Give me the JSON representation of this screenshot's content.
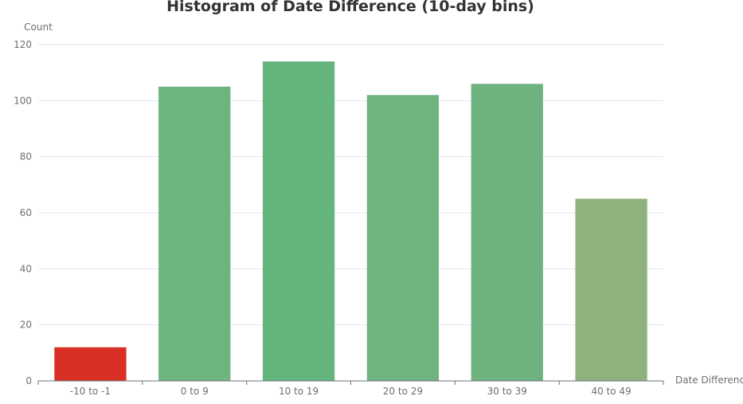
{
  "chart_data": {
    "type": "bar",
    "title": "Histogram of Date Difference (10-day bins)",
    "xlabel": "Date Differenc",
    "ylabel": "Count",
    "categories": [
      "-10 to -1",
      "0 to 9",
      "10 to 19",
      "20 to 29",
      "30 to 39",
      "40 to 49"
    ],
    "values": [
      12,
      105,
      114,
      102,
      106,
      65
    ],
    "bar_colors": [
      "#d93025",
      "#6db47f",
      "#63b47d",
      "#6fb380",
      "#6db27f",
      "#8fb17b"
    ],
    "ylim": [
      0,
      120
    ],
    "yticks": [
      0,
      20,
      40,
      60,
      80,
      100,
      120
    ],
    "grid": true,
    "gridline_color": "#e0e6f1",
    "axis_color": "#6e7079"
  }
}
